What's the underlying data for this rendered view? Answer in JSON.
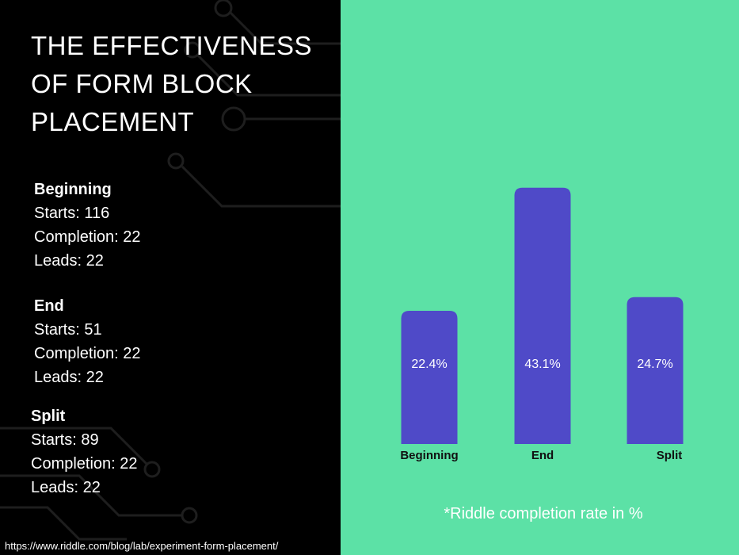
{
  "title": "THE EFFECTIVENESS OF FORM BLOCK PLACEMENT",
  "stats": [
    {
      "name": "Beginning",
      "starts": "Starts: 116",
      "completion": "Completion: 22",
      "leads": "Leads: 22"
    },
    {
      "name": "End",
      "starts": "Starts: 51",
      "completion": "Completion: 22",
      "leads": "Leads: 22"
    },
    {
      "name": "Split",
      "starts": "Starts: 89",
      "completion": "Completion: 22",
      "leads": "Leads: 22"
    }
  ],
  "source_url": "https://www.riddle.com/blog/lab/experiment-form-placement/",
  "colors": {
    "left_bg": "#000000",
    "right_bg": "#5ce1a6",
    "bar": "#4f4ac8",
    "text_light": "#ffffff",
    "text_dark": "#111111"
  },
  "chart_data": {
    "type": "bar",
    "categories": [
      "Beginning",
      "End",
      "Split"
    ],
    "values": [
      22.4,
      43.1,
      24.7
    ],
    "value_labels": [
      "22.4%",
      "43.1%",
      "24.7%"
    ],
    "note": "*Riddle completion rate in %",
    "ylim": [
      0,
      46
    ],
    "grid": false
  }
}
